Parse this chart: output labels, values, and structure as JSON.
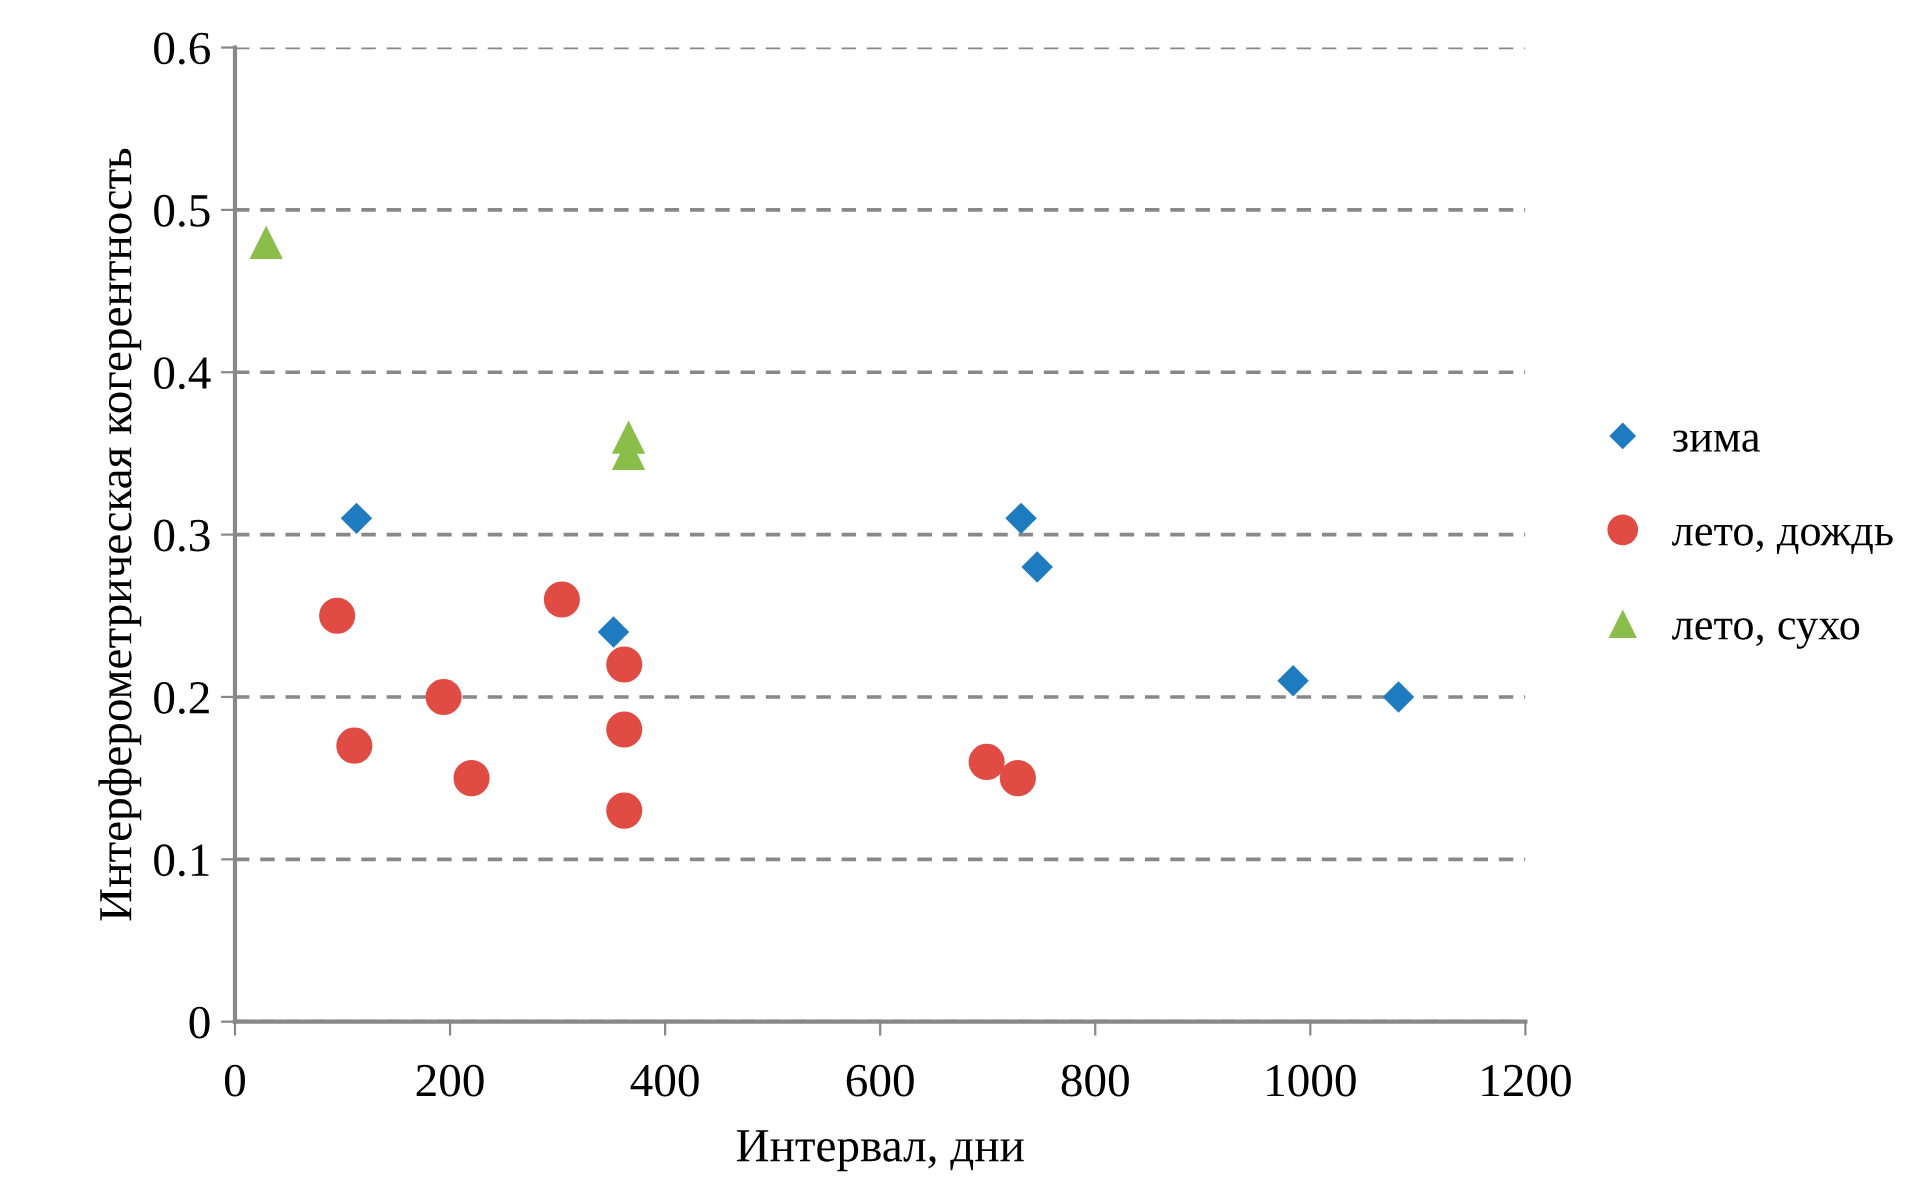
{
  "chart_data": {
    "type": "scatter",
    "xlabel": "Интервал, дни",
    "ylabel": "Интерферометрическая когерентность",
    "xlim": [
      0,
      1200
    ],
    "xticks": [
      0,
      200,
      400,
      600,
      800,
      1000,
      1200
    ],
    "ylim": [
      0,
      0.6
    ],
    "yticks": [
      0,
      0.1,
      0.2,
      0.3,
      0.4,
      0.5,
      0.6
    ],
    "grid": "y",
    "legend": "right",
    "series": [
      {
        "name": "зима",
        "color": "#1f7bbf",
        "marker": "diamond",
        "x": [
          113,
          352,
          731,
          746,
          984,
          1082
        ],
        "values": [
          0.31,
          0.24,
          0.31,
          0.28,
          0.21,
          0.2
        ]
      },
      {
        "name": "лето, дождь",
        "color": "#e04b44",
        "marker": "circle",
        "x": [
          95,
          111,
          194,
          220,
          304,
          362,
          362,
          362,
          699,
          728
        ],
        "values": [
          0.25,
          0.17,
          0.2,
          0.15,
          0.26,
          0.22,
          0.18,
          0.13,
          0.16,
          0.15
        ]
      },
      {
        "name": "лето, сухо",
        "color": "#8bbd4b",
        "marker": "triangle",
        "x": [
          29,
          366,
          366
        ],
        "values": [
          0.48,
          0.36,
          0.35
        ]
      }
    ]
  }
}
